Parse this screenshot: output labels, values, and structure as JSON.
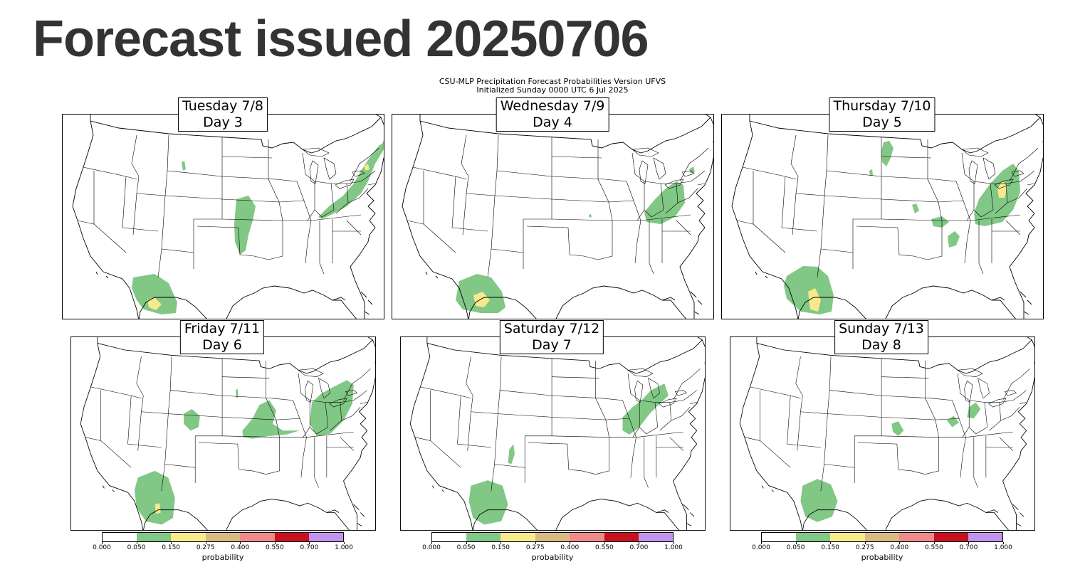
{
  "page": {
    "title": "Forecast issued 20250706"
  },
  "figure": {
    "title_line1": "CSU-MLP Precipitation Forecast Probabilities Version UFVS",
    "title_line2": "Initialized Sunday 0000 UTC 6 Jul 2025"
  },
  "panels": [
    {
      "line1": "Tuesday 7/8",
      "line2": "Day 3"
    },
    {
      "line1": "Wednesday 7/9",
      "line2": "Day 4"
    },
    {
      "line1": "Thursday 7/10",
      "line2": "Day 5"
    },
    {
      "line1": "Friday 7/11",
      "line2": "Day 6"
    },
    {
      "line1": "Saturday 7/12",
      "line2": "Day 7"
    },
    {
      "line1": "Sunday 7/13",
      "line2": "Day 8"
    }
  ],
  "colorbar": {
    "label": "probability",
    "ticks": [
      "0.000",
      "0.050",
      "0.150",
      "0.275",
      "0.400",
      "0.550",
      "0.700",
      "1.000"
    ],
    "colors": [
      "#ffffff",
      "#81c785",
      "#f8e98c",
      "#dab982",
      "#f08a8a",
      "#c8101e",
      "#c293ef"
    ]
  },
  "colors": {
    "green": "#81c785",
    "yellow": "#f8e98c",
    "border": "#000000",
    "title": "#333333"
  }
}
